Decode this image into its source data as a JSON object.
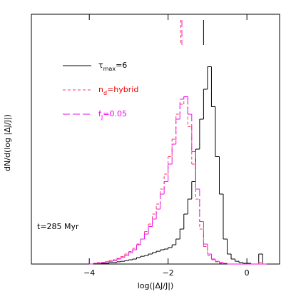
{
  "chart_data": {
    "type": "histogram",
    "xlabel": "log(|ΔJ/J|)",
    "ylabel": "dN/d(log |ΔJ/J|)",
    "annotation": "t=285 Myr",
    "xlim": [
      -5.47,
      0.83
    ],
    "ylim": [
      0,
      1
    ],
    "xticks": [
      {
        "value": -4,
        "label": "−4"
      },
      {
        "value": -2,
        "label": "−2"
      },
      {
        "value": 0,
        "label": "0"
      }
    ],
    "bins": [
      -4.0,
      -3.9,
      -3.8,
      -3.7,
      -3.6,
      -3.5,
      -3.4,
      -3.3,
      -3.2,
      -3.1,
      -3.0,
      -2.9,
      -2.8,
      -2.7,
      -2.6,
      -2.5,
      -2.4,
      -2.3,
      -2.2,
      -2.1,
      -2.0,
      -1.9,
      -1.8,
      -1.7,
      -1.6,
      -1.5,
      -1.4,
      -1.3,
      -1.2,
      -1.1,
      -1.0,
      -0.9,
      -0.8,
      -0.7,
      -0.6,
      -0.5,
      -0.4,
      -0.3,
      -0.2,
      -0.1,
      0.0,
      0.1,
      0.2,
      0.3,
      0.4,
      0.5
    ],
    "series": [
      {
        "name": [
          "τ",
          "max",
          "=6"
        ],
        "color": "#000000",
        "text_color": "#000000",
        "dash": "none",
        "marker": -1.1,
        "values": [
          0,
          0,
          0,
          0.003,
          0.003,
          0.006,
          0.006,
          0.009,
          0.011,
          0.014,
          0.017,
          0.02,
          0.026,
          0.031,
          0.034,
          0.04,
          0.046,
          0.051,
          0.057,
          0.06,
          0.066,
          0.077,
          0.1,
          0.14,
          0.2,
          0.26,
          0.33,
          0.46,
          0.58,
          0.7,
          0.79,
          0.63,
          0.43,
          0.28,
          0.1,
          0.04,
          0.02,
          0.011,
          0.006,
          0.003,
          0.003,
          0,
          0,
          0.04,
          0
        ]
      },
      {
        "name": [
          "n",
          "d",
          "=hybrid"
        ],
        "color": "#ff3a6a",
        "text_color": "#ee0000",
        "dash": "4 3",
        "marker": -1.68,
        "values": [
          0,
          0.003,
          0.006,
          0.006,
          0.009,
          0.014,
          0.017,
          0.023,
          0.03,
          0.04,
          0.05,
          0.063,
          0.08,
          0.1,
          0.13,
          0.16,
          0.2,
          0.24,
          0.3,
          0.36,
          0.43,
          0.5,
          0.6,
          0.64,
          0.67,
          0.55,
          0.4,
          0.26,
          0.14,
          0.07,
          0.034,
          0.017,
          0.009,
          0.003,
          0.003,
          0,
          0,
          0,
          0,
          0,
          0,
          0,
          0,
          0.006,
          0
        ]
      },
      {
        "name": [
          "f",
          "J",
          "=0.05"
        ],
        "color": "#ee11ee",
        "text_color": "#ee00ee",
        "dash": "10 4",
        "marker": -1.65,
        "values": [
          0,
          0.003,
          0.003,
          0.006,
          0.009,
          0.011,
          0.014,
          0.02,
          0.026,
          0.034,
          0.046,
          0.057,
          0.077,
          0.1,
          0.12,
          0.15,
          0.18,
          0.22,
          0.28,
          0.33,
          0.4,
          0.48,
          0.58,
          0.66,
          0.67,
          0.6,
          0.45,
          0.3,
          0.17,
          0.08,
          0.04,
          0.02,
          0.011,
          0.006,
          0.003,
          0,
          0,
          0,
          0,
          0,
          0,
          0,
          0,
          0,
          0
        ]
      }
    ]
  }
}
